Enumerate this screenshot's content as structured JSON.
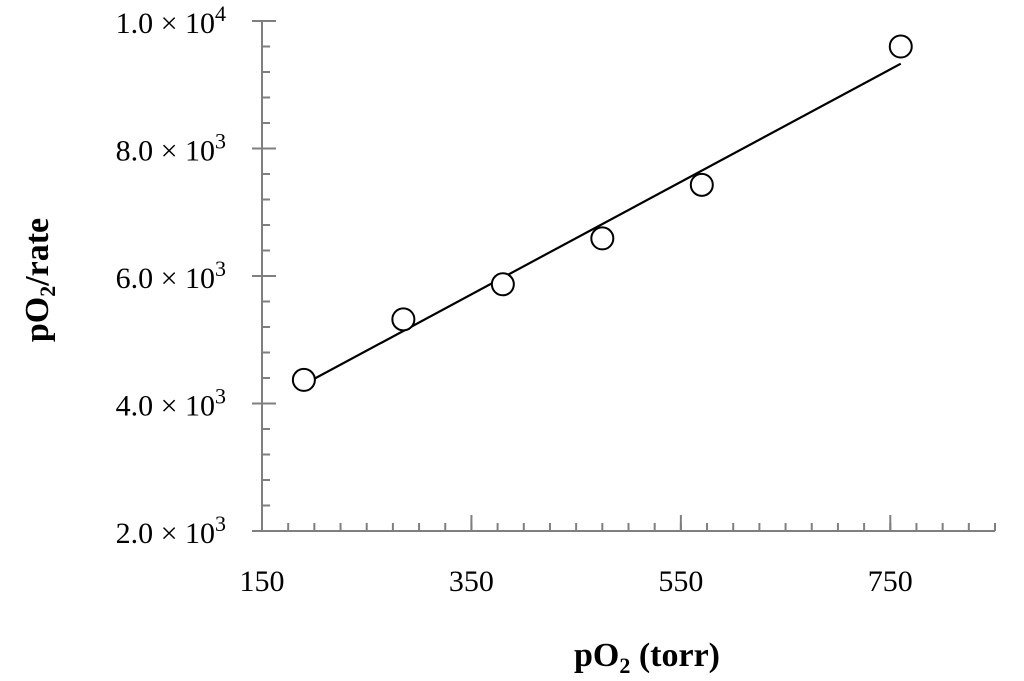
{
  "chart_data": {
    "type": "scatter",
    "title": "",
    "xlabel": {
      "base": "pO",
      "sub": "2",
      "rest": " (torr)"
    },
    "ylabel": {
      "base": "pO",
      "sub": "2",
      "rest": "/rate"
    },
    "xlim": [
      150,
      850
    ],
    "ylim": [
      2000,
      10000
    ],
    "x_ticks": [
      {
        "value": 150,
        "label": "150"
      },
      {
        "value": 350,
        "label": "350"
      },
      {
        "value": 550,
        "label": "550"
      },
      {
        "value": 750,
        "label": "750"
      }
    ],
    "y_ticks": [
      {
        "value": 2000,
        "mant": "2.0 × 10",
        "exp": "3"
      },
      {
        "value": 4000,
        "mant": "4.0 × 10",
        "exp": "3"
      },
      {
        "value": 6000,
        "mant": "6.0 × 10",
        "exp": "3"
      },
      {
        "value": 8000,
        "mant": "8.0 × 10",
        "exp": "3"
      },
      {
        "value": 10000,
        "mant": "1.0 × 10",
        "exp": "4"
      }
    ],
    "x_minor_step": 25,
    "y_minor_step": 400,
    "series": [
      {
        "marker": "open-circle",
        "x": [
          190,
          285,
          380,
          475,
          570,
          760
        ],
        "y": [
          4370,
          5320,
          5870,
          6590,
          7430,
          9600
        ]
      }
    ],
    "trendline": {
      "type": "linear",
      "x": [
        190,
        760
      ],
      "y": [
        4300,
        9330
      ]
    },
    "grid": false,
    "legend": "none"
  }
}
